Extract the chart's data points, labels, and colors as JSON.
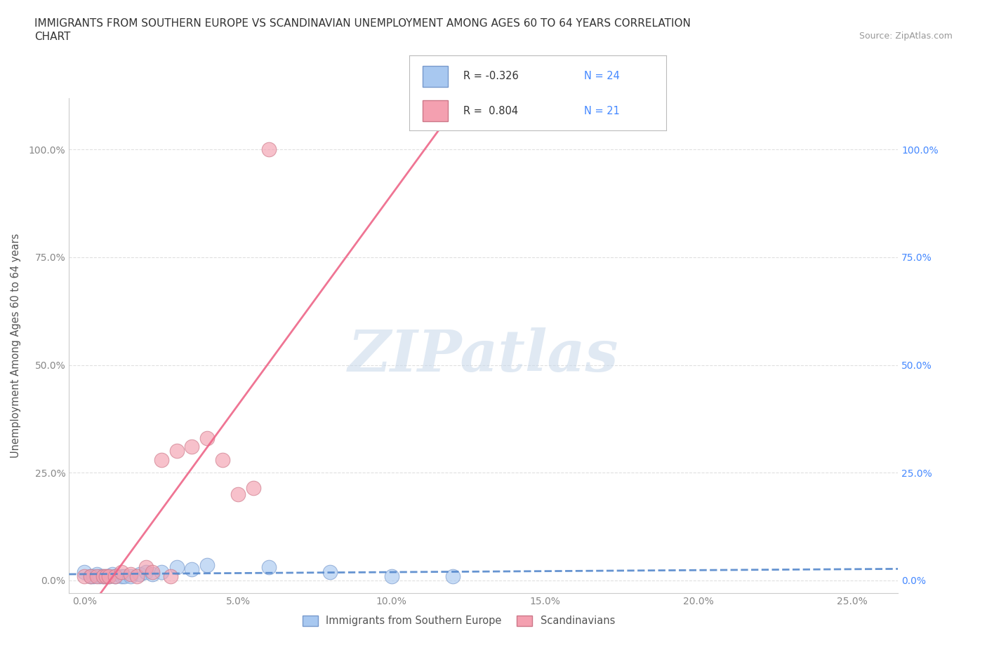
{
  "title_line1": "IMMIGRANTS FROM SOUTHERN EUROPE VS SCANDINAVIAN UNEMPLOYMENT AMONG AGES 60 TO 64 YEARS CORRELATION",
  "title_line2": "CHART",
  "source": "Source: ZipAtlas.com",
  "ylabel_label": "Unemployment Among Ages 60 to 64 years",
  "legend_label1": "Immigrants from Southern Europe",
  "legend_label2": "Scandinavians",
  "legend_R1": "R = -0.326",
  "legend_N1": "N = 24",
  "legend_R2": "R =  0.804",
  "legend_N2": "N = 21",
  "blue_scatter_color": "#A8C8F0",
  "pink_scatter_color": "#F4A0B0",
  "blue_line_color": "#5588CC",
  "pink_line_color": "#EE6688",
  "watermark": "ZIPatlas",
  "blue_points_x": [
    0.0,
    0.002,
    0.003,
    0.004,
    0.005,
    0.006,
    0.007,
    0.008,
    0.009,
    0.01,
    0.012,
    0.013,
    0.015,
    0.018,
    0.02,
    0.022,
    0.025,
    0.03,
    0.035,
    0.04,
    0.06,
    0.08,
    0.1,
    0.12
  ],
  "blue_points_y": [
    0.02,
    0.01,
    0.01,
    0.015,
    0.01,
    0.01,
    0.01,
    0.01,
    0.015,
    0.01,
    0.01,
    0.01,
    0.01,
    0.015,
    0.02,
    0.015,
    0.02,
    0.03,
    0.025,
    0.035,
    0.03,
    0.02,
    0.01,
    0.01
  ],
  "pink_points_x": [
    0.0,
    0.002,
    0.004,
    0.006,
    0.007,
    0.008,
    0.01,
    0.012,
    0.015,
    0.017,
    0.02,
    0.022,
    0.025,
    0.028,
    0.03,
    0.035,
    0.04,
    0.045,
    0.05,
    0.055,
    0.06
  ],
  "pink_points_y": [
    0.01,
    0.01,
    0.01,
    0.01,
    0.01,
    0.01,
    0.01,
    0.02,
    0.015,
    0.01,
    0.03,
    0.02,
    0.28,
    0.01,
    0.3,
    0.31,
    0.33,
    0.28,
    0.2,
    0.215,
    1.0
  ],
  "x_tick_vals": [
    0.0,
    0.05,
    0.1,
    0.15,
    0.2,
    0.25
  ],
  "y_tick_vals": [
    0.0,
    0.25,
    0.5,
    0.75,
    1.0
  ],
  "xmin": -0.005,
  "xmax": 0.265,
  "ymin": -0.03,
  "ymax": 1.12,
  "grid_color": "#DDDDDD",
  "background_color": "#FFFFFF",
  "tick_color": "#888888",
  "right_tick_color": "#4488FF"
}
